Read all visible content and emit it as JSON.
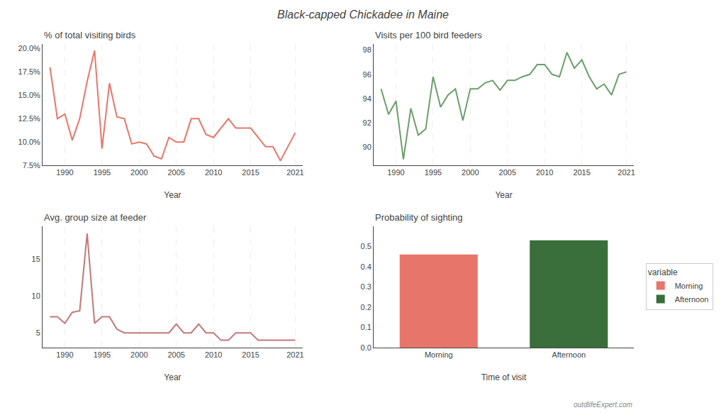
{
  "title": "Black-capped Chickadee in Maine",
  "annotations": [
    "outdlifeExpert.com"
  ],
  "chart_data": [
    {
      "type": "line",
      "title": "% of total visiting birds",
      "xlabel": "Year",
      "x": [
        1988,
        1989,
        1990,
        1991,
        1992,
        1993,
        1994,
        1995,
        1996,
        1997,
        1998,
        1999,
        2000,
        2001,
        2002,
        2003,
        2004,
        2005,
        2006,
        2007,
        2008,
        2009,
        2010,
        2011,
        2012,
        2013,
        2014,
        2015,
        2016,
        2017,
        2018,
        2019,
        2020,
        2021
      ],
      "values": [
        18.0,
        12.5,
        13.0,
        10.2,
        12.5,
        16.5,
        19.8,
        9.3,
        16.3,
        12.7,
        12.5,
        9.8,
        10.0,
        9.8,
        8.5,
        8.2,
        10.5,
        10.0,
        10.0,
        12.5,
        12.5,
        10.8,
        10.5,
        11.5,
        12.5,
        11.5,
        11.5,
        11.5,
        10.5,
        9.5,
        9.5,
        8.0,
        9.5,
        11.0
      ],
      "color": "#e8756a",
      "xlim": [
        1987,
        2022
      ],
      "xticks": [
        1990,
        1995,
        2000,
        2005,
        2010,
        2015,
        2021
      ],
      "ylim": [
        7.5,
        20.5
      ],
      "yticks": [
        {
          "value": 7.5,
          "label": "7.5%"
        },
        {
          "value": 10.0,
          "label": "10.0%"
        },
        {
          "value": 12.5,
          "label": "12.5%"
        },
        {
          "value": 15.0,
          "label": "15.0%"
        },
        {
          "value": 17.5,
          "label": "17.5%"
        },
        {
          "value": 20.0,
          "label": "20.0%"
        }
      ],
      "grid": "x"
    },
    {
      "type": "line",
      "title": "Visits per 100 bird feeders",
      "xlabel": "Year",
      "x": [
        1988,
        1989,
        1990,
        1991,
        1992,
        1993,
        1994,
        1995,
        1996,
        1997,
        1998,
        1999,
        2000,
        2001,
        2002,
        2003,
        2004,
        2005,
        2006,
        2007,
        2008,
        2009,
        2010,
        2011,
        2012,
        2013,
        2014,
        2015,
        2016,
        2017,
        2018,
        2019,
        2020,
        2021
      ],
      "values": [
        94.8,
        92.7,
        93.8,
        89.0,
        93.2,
        91.0,
        91.5,
        95.8,
        93.3,
        94.3,
        94.8,
        92.2,
        94.8,
        94.8,
        95.3,
        95.5,
        94.7,
        95.5,
        95.5,
        95.8,
        96.0,
        96.8,
        96.8,
        96.0,
        95.8,
        97.8,
        96.5,
        97.2,
        95.8,
        94.8,
        95.2,
        94.3,
        96.0,
        96.2
      ],
      "color": "#6b9e6b",
      "xlim": [
        1987,
        2022
      ],
      "xticks": [
        1990,
        1995,
        2000,
        2005,
        2010,
        2015,
        2021
      ],
      "ylim": [
        88.5,
        98.5
      ],
      "yticks": [
        90,
        92,
        94,
        96,
        98
      ],
      "grid": "x"
    },
    {
      "type": "line",
      "title": "Avg. group size at feeder",
      "xlabel": "Year",
      "x": [
        1988,
        1989,
        1990,
        1991,
        1992,
        1993,
        1994,
        1995,
        1996,
        1997,
        1998,
        1999,
        2000,
        2001,
        2002,
        2003,
        2004,
        2005,
        2006,
        2007,
        2008,
        2009,
        2010,
        2011,
        2012,
        2013,
        2014,
        2015,
        2016,
        2017,
        2018,
        2019,
        2020,
        2021
      ],
      "values": [
        7.2,
        7.2,
        6.3,
        7.8,
        8.0,
        18.5,
        6.3,
        7.2,
        7.2,
        5.5,
        5.0,
        5.0,
        5.0,
        5.0,
        5.0,
        5.0,
        5.0,
        6.2,
        5.0,
        5.0,
        6.2,
        5.0,
        5.0,
        4.0,
        4.0,
        5.0,
        5.0,
        5.0,
        4.0,
        4.0,
        4.0,
        4.0,
        4.0,
        4.0
      ],
      "color": "#c47878",
      "xlim": [
        1987,
        2022
      ],
      "xticks": [
        1990,
        1995,
        2000,
        2005,
        2010,
        2015,
        2021
      ],
      "ylim": [
        3.0,
        19.5
      ],
      "yticks": [
        5,
        10,
        15
      ],
      "grid": "x"
    },
    {
      "type": "bar",
      "title": "Probability of sighting",
      "xlabel": "Time of visit",
      "categories": [
        "Morning",
        "Afternoon"
      ],
      "values": [
        0.46,
        0.53
      ],
      "colors": [
        "#e8756a",
        "#3a6e3a"
      ],
      "ylim": [
        0.0,
        0.6
      ],
      "yticks": [
        {
          "value": 0.0,
          "label": "0.0"
        },
        0.1,
        0.2,
        0.3,
        0.4,
        0.5
      ],
      "grid": false,
      "legend": "right",
      "legend_title": "variable"
    }
  ]
}
